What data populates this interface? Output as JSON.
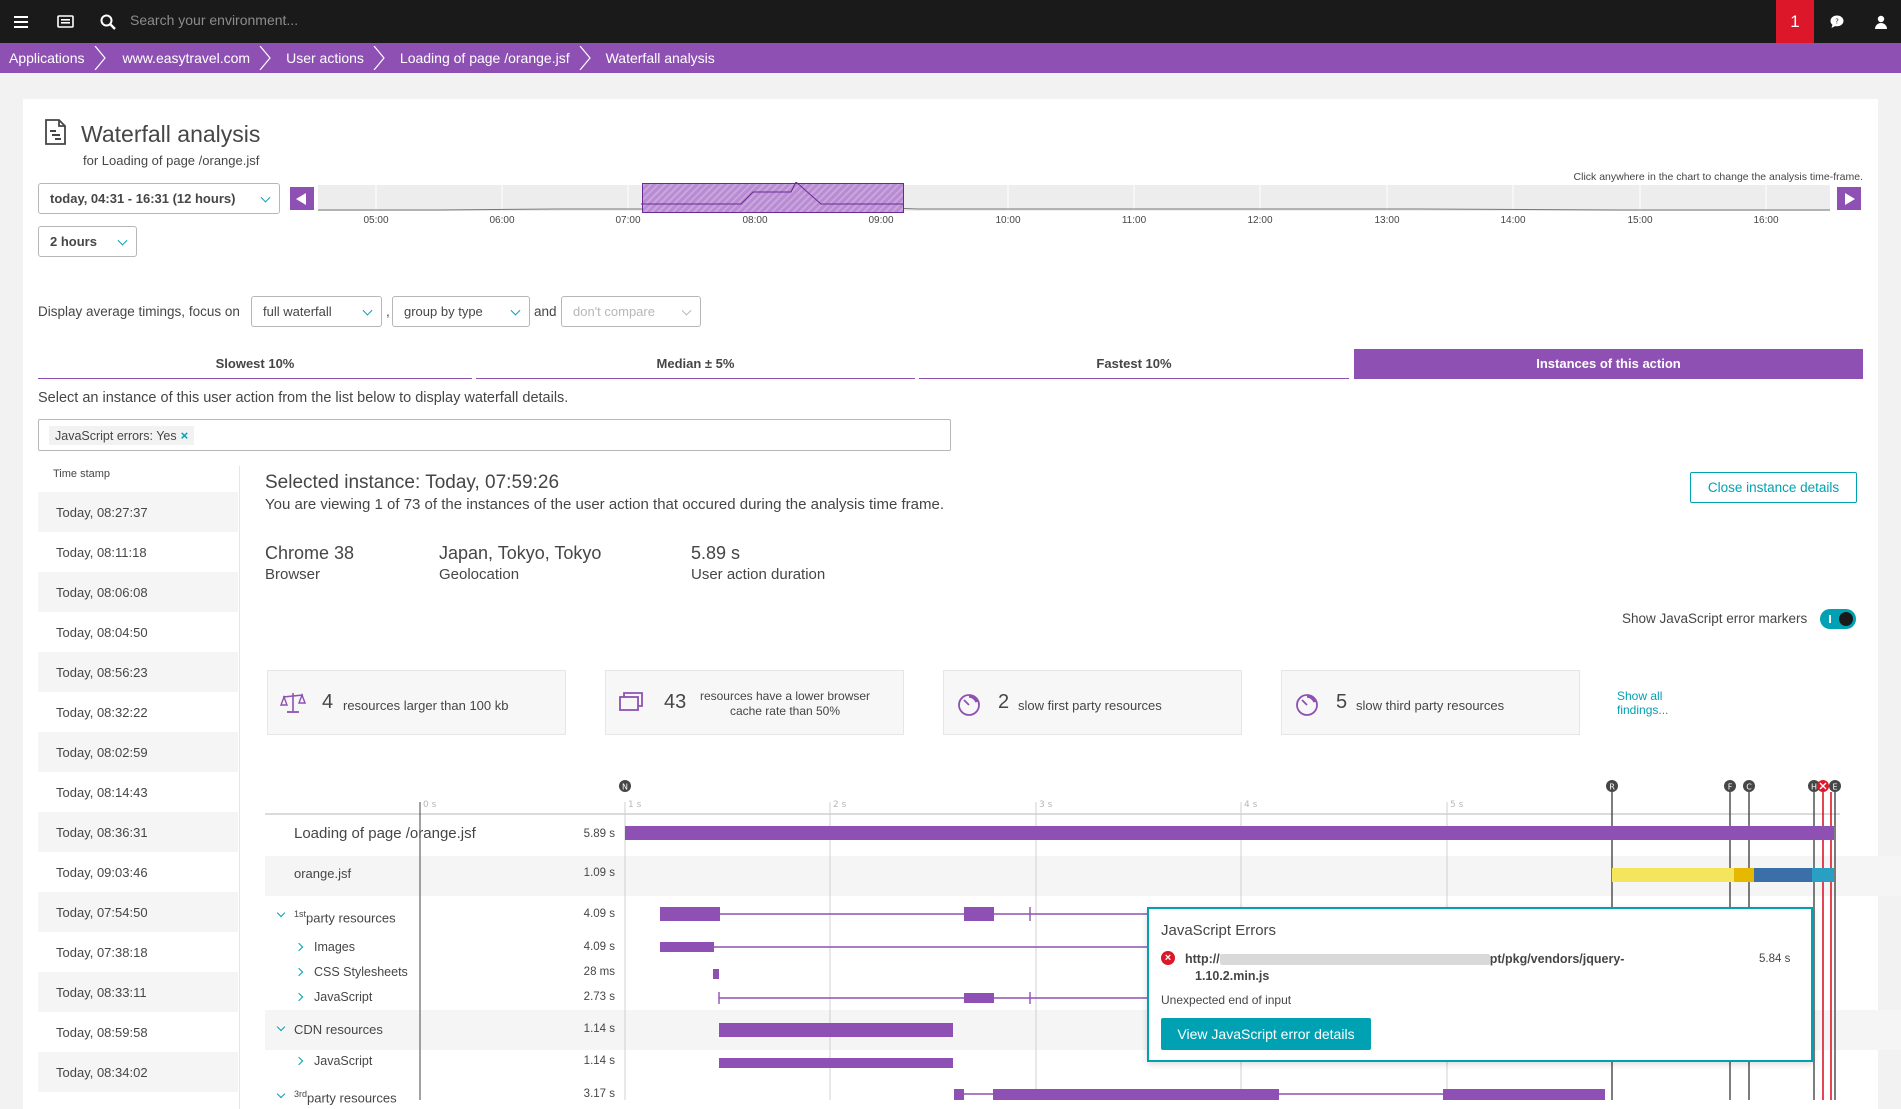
{
  "topbar": {
    "search_placeholder": "Search your environment...",
    "notification_count": "1"
  },
  "breadcrumb": [
    "Applications",
    "www.easytravel.com",
    "User actions",
    "Loading of page /orange.jsf",
    "Waterfall analysis"
  ],
  "header": {
    "title": "Waterfall analysis",
    "subtitle": "for Loading of page /orange.jsf",
    "timeframe": "today, 04:31 - 16:31 (12 hours)",
    "resolution": "2 hours",
    "hint": "Click anywhere in the chart to change the analysis time-frame."
  },
  "timeline": {
    "ticks": [
      "05:00",
      "06:00",
      "07:00",
      "08:00",
      "09:00",
      "10:00",
      "11:00",
      "12:00",
      "13:00",
      "14:00",
      "15:00",
      "16:00"
    ]
  },
  "controls": {
    "prefix": "Display average timings, focus on",
    "focus": "full waterfall",
    "comma": ",",
    "group": "group by type",
    "and": "and",
    "compare": "don't compare"
  },
  "tabs": [
    "Slowest 10%",
    "Median ± 5%",
    "Fastest 10%",
    "Instances of this action"
  ],
  "instances": {
    "note": "Select an instance of this user action from the list below to display waterfall details.",
    "filter_chip": "JavaScript errors: Yes",
    "filter_remove": "×",
    "column_header": "Time stamp",
    "rows": [
      "Today, 08:27:37",
      "Today, 08:11:18",
      "Today, 08:06:08",
      "Today, 08:04:50",
      "Today, 08:56:23",
      "Today, 08:32:22",
      "Today, 08:02:59",
      "Today, 08:14:43",
      "Today, 08:36:31",
      "Today, 09:03:46",
      "Today, 07:54:50",
      "Today, 07:38:18",
      "Today, 08:33:11",
      "Today, 08:59:58",
      "Today, 08:34:02"
    ]
  },
  "selected": {
    "title": "Selected instance: Today, 07:59:26",
    "subtitle": "You are viewing 1 of 73 of the instances of the user action that occured during the analysis time frame.",
    "close_label": "Close instance details",
    "metrics": [
      {
        "value": "Chrome 38",
        "label": "Browser"
      },
      {
        "value": "Japan, Tokyo, Tokyo",
        "label": "Geolocation"
      },
      {
        "value": "5.89 s",
        "label": "User action duration"
      }
    ],
    "toggle_label": "Show JavaScript error markers"
  },
  "findings": [
    {
      "count": "4",
      "text": "resources larger than 100 kb"
    },
    {
      "count": "43",
      "text": "resources have a lower browser cache rate than 50%"
    },
    {
      "count": "2",
      "text": "slow first party resources"
    },
    {
      "count": "5",
      "text": "slow third party resources"
    }
  ],
  "show_all": "Show all findings...",
  "waterfall": {
    "axis": [
      "0 s",
      "1 s",
      "2 s",
      "3 s",
      "4 s",
      "5 s"
    ],
    "markers": [
      "N",
      "R",
      "F",
      "C",
      "H",
      "E"
    ],
    "rows": [
      {
        "label": "Loading of page /orange.jsf",
        "duration": "5.89 s"
      },
      {
        "label": "orange.jsf",
        "duration": "1.09 s"
      },
      {
        "label": "party resources",
        "sup": "1st",
        "duration": "4.09 s"
      },
      {
        "label": "Images",
        "duration": "4.09 s"
      },
      {
        "label": "CSS Stylesheets",
        "duration": "28 ms"
      },
      {
        "label": "JavaScript",
        "duration": "2.73 s"
      },
      {
        "label": "CDN resources",
        "duration": "1.14 s"
      },
      {
        "label": "JavaScript",
        "duration": "1.14 s"
      },
      {
        "label": "party resources",
        "sup": "3rd",
        "duration": "3.17 s"
      }
    ]
  },
  "js_errors": {
    "title": "JavaScript Errors",
    "url_start": "http://",
    "url_end": "pt/pkg/vendors/jquery-",
    "url_line2": "1.10.2.min.js",
    "time": "5.84 s",
    "message": "Unexpected end of input",
    "button": "View JavaScript error details"
  },
  "colors": {
    "accent": "#8e51b3",
    "teal": "#00a1b2",
    "error": "#dc172a",
    "bar_yellow": "#f5e55c",
    "bar_blue": "#3b6fa8"
  }
}
